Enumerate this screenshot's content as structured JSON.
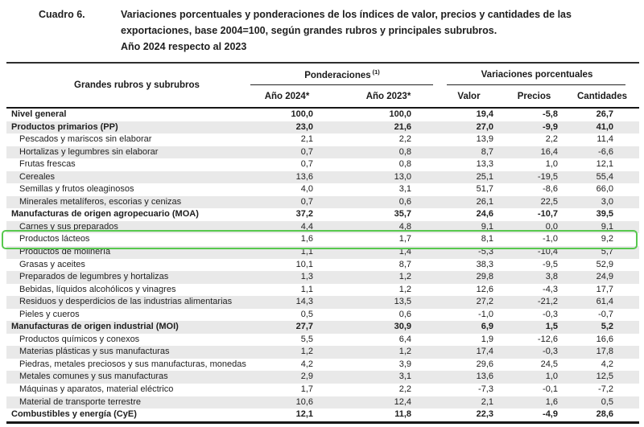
{
  "header": {
    "label": "Cuadro 6.",
    "title_line1": "Variaciones porcentuales y ponderaciones de los índices de valor, precios y cantidades de las",
    "title_line2": "exportaciones, base 2004=100, según grandes rubros y principales subrubros.",
    "title_line3": "Año 2024 respecto al 2023"
  },
  "table": {
    "stub_header": "Grandes rubros y subrubros",
    "group1_label": "Ponderaciones",
    "group1_note": "(1)",
    "group2_label": "Variaciones porcentuales",
    "col_headers": [
      "Año 2024*",
      "Año 2023*",
      "Valor",
      "Precios",
      "Cantidades"
    ],
    "highlight_row_index": 10,
    "highlight_color": "#57c84e",
    "stripe_color": "#e9e9e9",
    "rows": [
      {
        "label": "Nivel general",
        "bold": true,
        "values": [
          "100,0",
          "100,0",
          "19,4",
          "-5,8",
          "26,7"
        ]
      },
      {
        "label": "Productos primarios (PP)",
        "bold": true,
        "values": [
          "23,0",
          "21,6",
          "27,0",
          "-9,9",
          "41,0"
        ]
      },
      {
        "label": "Pescados y mariscos sin elaborar",
        "bold": false,
        "values": [
          "2,1",
          "2,2",
          "13,9",
          "2,2",
          "11,4"
        ]
      },
      {
        "label": "Hortalizas y legumbres sin elaborar",
        "bold": false,
        "values": [
          "0,7",
          "0,8",
          "8,7",
          "16,4",
          "-6,6"
        ]
      },
      {
        "label": "Frutas frescas",
        "bold": false,
        "values": [
          "0,7",
          "0,8",
          "13,3",
          "1,0",
          "12,1"
        ]
      },
      {
        "label": "Cereales",
        "bold": false,
        "values": [
          "13,6",
          "13,0",
          "25,1",
          "-19,5",
          "55,4"
        ]
      },
      {
        "label": "Semillas y frutos oleaginosos",
        "bold": false,
        "values": [
          "4,0",
          "3,1",
          "51,7",
          "-8,6",
          "66,0"
        ]
      },
      {
        "label": "Minerales metalíferos, escorias y cenizas",
        "bold": false,
        "values": [
          "0,7",
          "0,6",
          "26,1",
          "22,5",
          "3,0"
        ]
      },
      {
        "label": "Manufacturas de origen agropecuario (MOA)",
        "bold": true,
        "values": [
          "37,2",
          "35,7",
          "24,6",
          "-10,7",
          "39,5"
        ]
      },
      {
        "label": "Carnes y sus preparados",
        "bold": false,
        "values": [
          "4,4",
          "4,8",
          "9,1",
          "0,0",
          "9,1"
        ]
      },
      {
        "label": "Productos lácteos",
        "bold": false,
        "values": [
          "1,6",
          "1,7",
          "8,1",
          "-1,0",
          "9,2"
        ]
      },
      {
        "label": "Productos de molinería",
        "bold": false,
        "values": [
          "1,1",
          "1,4",
          "-5,3",
          "-10,4",
          "5,7"
        ]
      },
      {
        "label": "Grasas y aceites",
        "bold": false,
        "values": [
          "10,1",
          "8,7",
          "38,3",
          "-9,5",
          "52,9"
        ]
      },
      {
        "label": "Preparados de legumbres y hortalizas",
        "bold": false,
        "values": [
          "1,3",
          "1,2",
          "29,8",
          "3,8",
          "24,9"
        ]
      },
      {
        "label": "Bebidas, líquidos alcohólicos y vinagres",
        "bold": false,
        "values": [
          "1,1",
          "1,2",
          "12,6",
          "-4,3",
          "17,7"
        ]
      },
      {
        "label": "Residuos y desperdicios de las industrias alimentarias",
        "bold": false,
        "values": [
          "14,3",
          "13,5",
          "27,2",
          "-21,2",
          "61,4"
        ]
      },
      {
        "label": "Pieles y cueros",
        "bold": false,
        "values": [
          "0,5",
          "0,6",
          "-1,0",
          "-0,3",
          "-0,7"
        ]
      },
      {
        "label": "Manufacturas de origen industrial (MOI)",
        "bold": true,
        "values": [
          "27,7",
          "30,9",
          "6,9",
          "1,5",
          "5,2"
        ]
      },
      {
        "label": "Productos químicos y conexos",
        "bold": false,
        "values": [
          "5,5",
          "6,4",
          "1,9",
          "-12,6",
          "16,6"
        ]
      },
      {
        "label": "Materias plásticas y sus manufacturas",
        "bold": false,
        "values": [
          "1,2",
          "1,2",
          "17,4",
          "-0,3",
          "17,8"
        ]
      },
      {
        "label": "Piedras, metales preciosos y sus manufacturas, monedas",
        "bold": false,
        "values": [
          "4,2",
          "3,9",
          "29,6",
          "24,5",
          "4,2"
        ]
      },
      {
        "label": "Metales comunes y sus manufacturas",
        "bold": false,
        "values": [
          "2,9",
          "3,1",
          "13,6",
          "1,0",
          "12,5"
        ]
      },
      {
        "label": "Máquinas y aparatos, material eléctrico",
        "bold": false,
        "values": [
          "1,7",
          "2,2",
          "-7,3",
          "-0,1",
          "-7,2"
        ]
      },
      {
        "label": "Material de transporte terrestre",
        "bold": false,
        "values": [
          "10,6",
          "12,4",
          "2,1",
          "1,6",
          "0,5"
        ]
      },
      {
        "label": "Combustibles y energía (CyE)",
        "bold": true,
        "values": [
          "12,1",
          "11,8",
          "22,3",
          "-4,9",
          "28,6"
        ]
      }
    ]
  }
}
